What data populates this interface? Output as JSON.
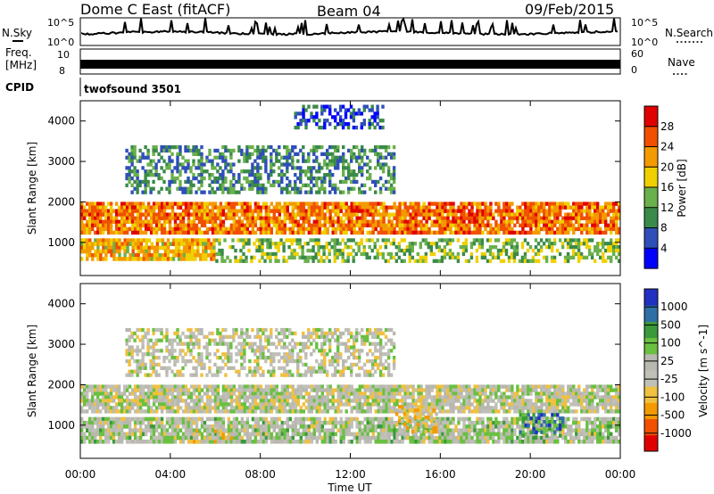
{
  "header": {
    "station": "Dome C East (fitACF)",
    "beam": "Beam 04",
    "date": "09/Feb/2015"
  },
  "top_panels": {
    "nsky": {
      "label": "N.Sky",
      "left_ticks": [
        "10^5",
        "10^0"
      ],
      "right_ticks": [
        "10^5",
        "10^0"
      ],
      "side_label": "N.Search"
    },
    "freq": {
      "label_line1": "Freq.",
      "label_line2": "[MHz]",
      "left_ticks": [
        "10",
        "8"
      ],
      "right_ticks": [
        "60",
        "0"
      ],
      "side_label": "Nave"
    },
    "cpid": {
      "label": "CPID",
      "value": "twofsound 3501"
    }
  },
  "x_axis": {
    "label": "Time UT",
    "ticks": [
      "00:00",
      "04:00",
      "08:00",
      "12:00",
      "16:00",
      "20:00",
      "00:00"
    ]
  },
  "colors": {
    "power": [
      "#0000ff",
      "#2f4fb8",
      "#3a8a4a",
      "#6ab04c",
      "#f0d000",
      "#f39a00",
      "#f05000",
      "#e00000"
    ],
    "velocity": [
      "#e00000",
      "#f05000",
      "#f39a00",
      "#f0c040",
      "#c0c0b8",
      "#b8b8b0",
      "#6ac040",
      "#3a9a3a",
      "#2f6fa8",
      "#2030c0"
    ]
  },
  "chart_data": [
    {
      "type": "heatmap",
      "title": "",
      "xlabel": "Time UT",
      "ylabel": "Slant Range [km]",
      "x_ticks": [
        "00:00",
        "04:00",
        "08:00",
        "12:00",
        "16:00",
        "20:00",
        "00:00"
      ],
      "xlim_hours": [
        0,
        24
      ],
      "y_ticks": [
        1000,
        2000,
        3000,
        4000
      ],
      "ylim": [
        180,
        4500
      ],
      "colorbar": {
        "label": "Power [dB]",
        "ticks": [
          4,
          8,
          12,
          16,
          20,
          24,
          28
        ],
        "range": [
          0,
          32
        ]
      },
      "regions": [
        {
          "t_start": 0.0,
          "t_end": 24.0,
          "r_min": 1200,
          "r_max": 2000,
          "value": 24
        },
        {
          "t_start": 0.0,
          "t_end": 6.0,
          "r_min": 550,
          "r_max": 1100,
          "value": 20
        },
        {
          "t_start": 6.0,
          "t_end": 24.0,
          "r_min": 500,
          "r_max": 1100,
          "value": 14
        },
        {
          "t_start": 2.0,
          "t_end": 14.0,
          "r_min": 2200,
          "r_max": 3400,
          "value": 10
        },
        {
          "t_start": 9.5,
          "t_end": 13.5,
          "r_min": 3800,
          "r_max": 4400,
          "value": 6
        }
      ]
    },
    {
      "type": "heatmap",
      "title": "",
      "xlabel": "Time UT",
      "ylabel": "Slant Range [km]",
      "x_ticks": [
        "00:00",
        "04:00",
        "08:00",
        "12:00",
        "16:00",
        "20:00",
        "00:00"
      ],
      "xlim_hours": [
        0,
        24
      ],
      "y_ticks": [
        1000,
        2000,
        3000,
        4000
      ],
      "ylim": [
        180,
        4500
      ],
      "colorbar": {
        "label": "Velocity [m s^-1]",
        "ticks": [
          "1000",
          "500",
          "100",
          "25",
          "-25",
          "-100",
          "-500",
          "-1000"
        ],
        "range": [
          -1500,
          1500
        ]
      },
      "regions": [
        {
          "t_start": 0.0,
          "t_end": 24.0,
          "r_min": 1300,
          "r_max": 2000,
          "value": 0
        },
        {
          "t_start": 0.0,
          "t_end": 24.0,
          "r_min": 550,
          "r_max": 1200,
          "value": 150
        },
        {
          "t_start": 5.0,
          "t_end": 7.0,
          "r_min": 550,
          "r_max": 900,
          "value": -200
        },
        {
          "t_start": 14.0,
          "t_end": 16.0,
          "r_min": 800,
          "r_max": 1500,
          "value": -300
        },
        {
          "t_start": 19.5,
          "t_end": 21.5,
          "r_min": 700,
          "r_max": 1300,
          "value": 800
        },
        {
          "t_start": 2.0,
          "t_end": 14.0,
          "r_min": 2200,
          "r_max": 3400,
          "value": 0
        }
      ]
    }
  ]
}
